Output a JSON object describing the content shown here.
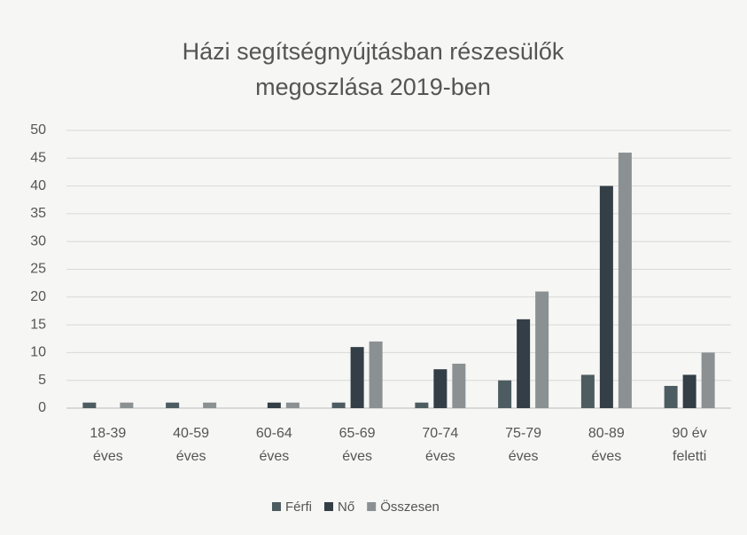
{
  "chart_data": {
    "type": "bar",
    "title": "Házi segítségnyújtásban részesülők\nmegoszlása 2019-ben",
    "categories": [
      "18-39\néves",
      "40-59\néves",
      "60-64\néves",
      "65-69\néves",
      "70-74\néves",
      "75-79\néves",
      "80-89\néves",
      "90 év\nfeletti"
    ],
    "series": [
      {
        "name": "Férfi",
        "color": "#4d5c60",
        "values": [
          1,
          1,
          0,
          1,
          1,
          5,
          6,
          4
        ]
      },
      {
        "name": "Nő",
        "color": "#333e46",
        "values": [
          0,
          0,
          1,
          11,
          7,
          16,
          40,
          6
        ]
      },
      {
        "name": "Összesen",
        "color": "#8b9093",
        "values": [
          1,
          1,
          1,
          12,
          8,
          21,
          46,
          10
        ]
      }
    ],
    "ylim": [
      0,
      50
    ],
    "yticks": [
      0,
      5,
      10,
      15,
      20,
      25,
      30,
      35,
      40,
      45,
      50
    ],
    "grid": true
  }
}
